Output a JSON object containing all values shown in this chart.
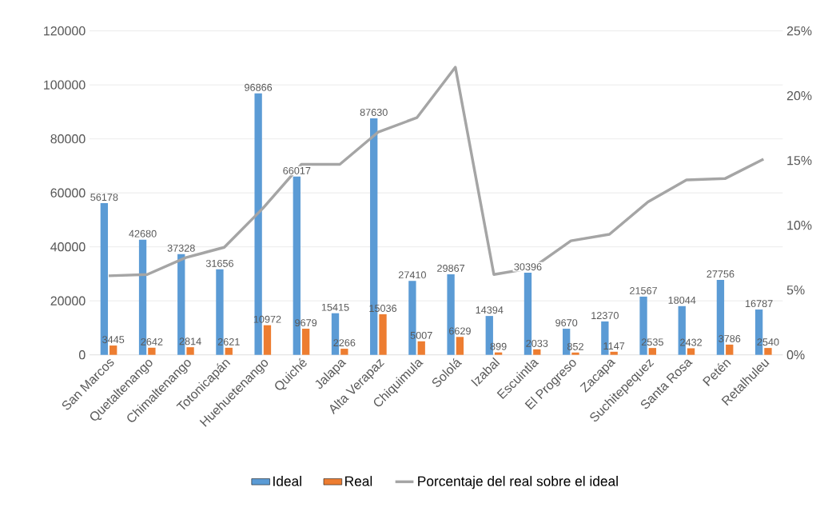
{
  "chart_data": {
    "type": "bar",
    "categories": [
      "San Marcos",
      "Quetaltenango",
      "Chimaltenango",
      "Totonicapán",
      "Huehuetenango",
      "Quiché",
      "Jalapa",
      "Alta Verapaz",
      "Chiquimula",
      "Sololá",
      "Izabal",
      "Escuintla",
      "El Progreso",
      "Zacapa",
      "Suchitepequez",
      "Santa Rosa",
      "Petén",
      "Retalhuleu"
    ],
    "series": [
      {
        "name": "Ideal",
        "color": "#5b9bd5",
        "values": [
          56178,
          42680,
          37328,
          31656,
          96866,
          66017,
          15415,
          87630,
          27410,
          29867,
          14394,
          30396,
          9670,
          12370,
          21567,
          18044,
          27756,
          16787
        ],
        "value_labels": [
          "56178",
          "42680",
          "37328",
          "31656",
          "96866",
          "66017",
          "15415",
          "87630",
          "27410",
          "29867",
          "14394",
          "30396",
          "9670",
          "12370",
          "21567",
          "18044",
          "27756",
          "16787"
        ]
      },
      {
        "name": "Real",
        "color": "#ed7d31",
        "values": [
          3445,
          2642,
          2814,
          2621,
          10972,
          9679,
          2266,
          15036,
          5007,
          6629,
          899,
          2033,
          852,
          1147,
          2535,
          2432,
          3786,
          2540
        ],
        "value_labels": [
          "3445",
          "2642",
          "2814",
          "2621",
          "10972",
          "9679",
          "2266",
          "15036",
          "5007",
          "6629",
          "899",
          "2033",
          "852",
          "1147",
          "2535",
          "2432",
          "3786",
          "2540"
        ]
      },
      {
        "name": "Porcentaje del real sobre el ideal",
        "type": "line",
        "axis": "y2",
        "color": "#a5a5a5",
        "values": [
          6.1,
          6.2,
          7.5,
          8.3,
          11.3,
          14.7,
          14.7,
          17.2,
          18.3,
          22.2,
          6.2,
          6.7,
          8.8,
          9.3,
          11.8,
          13.5,
          13.6,
          15.1
        ]
      }
    ],
    "ylim": [
      0,
      120000
    ],
    "yticks": [
      0,
      20000,
      40000,
      60000,
      80000,
      100000,
      120000
    ],
    "y2lim": [
      0,
      25
    ],
    "y2ticks": [
      {
        "value": 0,
        "label": "0%"
      },
      {
        "value": 5,
        "label": "5%"
      },
      {
        "value": 10,
        "label": "10%"
      },
      {
        "value": 15,
        "label": "15%"
      },
      {
        "value": 20,
        "label": "20%"
      },
      {
        "value": 25,
        "label": "25%"
      }
    ],
    "grid": "y",
    "legend": "bottom",
    "marker": "none"
  }
}
